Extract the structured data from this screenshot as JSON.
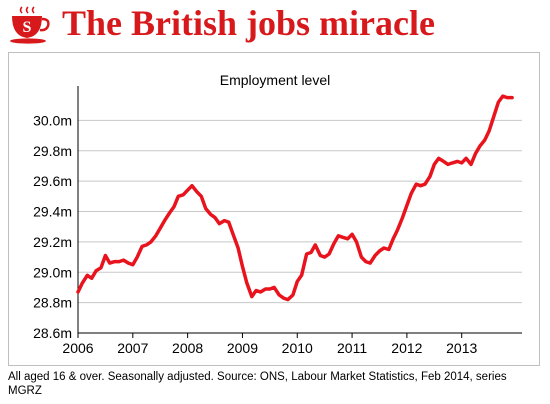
{
  "header": {
    "logo_icon": "coffee-cup-s-icon",
    "title": "The British jobs miracle",
    "accent_color": "#d7191c"
  },
  "footer": {
    "source": "All aged 16 & over. Seasonally adjusted. Source: ONS, Labour Market Statistics, Feb 2014, series MGRZ"
  },
  "chart_data": {
    "type": "line",
    "title": "Employment level",
    "xlabel": "",
    "ylabel": "",
    "xlim": [
      2006.0,
      2014.1
    ],
    "ylim": [
      28.6,
      30.2
    ],
    "grid": true,
    "legend": "none",
    "x_ticks": [
      {
        "v": 2006.0,
        "label": "2006"
      },
      {
        "v": 2007.0,
        "label": "2007"
      },
      {
        "v": 2008.0,
        "label": "2008"
      },
      {
        "v": 2009.0,
        "label": "2009"
      },
      {
        "v": 2010.0,
        "label": "2010"
      },
      {
        "v": 2011.0,
        "label": "2011"
      },
      {
        "v": 2012.0,
        "label": "2012"
      },
      {
        "v": 2013.0,
        "label": "2013"
      }
    ],
    "y_ticks": [
      {
        "v": 28.6,
        "label": "28.6m"
      },
      {
        "v": 28.8,
        "label": "28.8m"
      },
      {
        "v": 29.0,
        "label": "29.0m"
      },
      {
        "v": 29.2,
        "label": "29.2m"
      },
      {
        "v": 29.4,
        "label": "29.4m"
      },
      {
        "v": 29.6,
        "label": "29.6m"
      },
      {
        "v": 29.8,
        "label": "29.8m"
      },
      {
        "v": 30.0,
        "label": "30.0m"
      }
    ],
    "series": [
      {
        "color": "#e8131d",
        "x": [
          2006.0,
          2006.08,
          2006.17,
          2006.25,
          2006.33,
          2006.42,
          2006.5,
          2006.58,
          2006.67,
          2006.75,
          2006.83,
          2006.92,
          2007.0,
          2007.08,
          2007.17,
          2007.25,
          2007.33,
          2007.42,
          2007.5,
          2007.58,
          2007.67,
          2007.75,
          2007.83,
          2007.92,
          2008.0,
          2008.08,
          2008.17,
          2008.25,
          2008.33,
          2008.42,
          2008.5,
          2008.58,
          2008.67,
          2008.75,
          2008.83,
          2008.92,
          2009.0,
          2009.08,
          2009.17,
          2009.25,
          2009.33,
          2009.42,
          2009.5,
          2009.58,
          2009.67,
          2009.75,
          2009.83,
          2009.92,
          2010.0,
          2010.08,
          2010.17,
          2010.25,
          2010.33,
          2010.42,
          2010.5,
          2010.58,
          2010.67,
          2010.75,
          2010.83,
          2010.92,
          2011.0,
          2011.08,
          2011.17,
          2011.25,
          2011.33,
          2011.42,
          2011.5,
          2011.58,
          2011.67,
          2011.75,
          2011.83,
          2011.92,
          2012.0,
          2012.08,
          2012.17,
          2012.25,
          2012.33,
          2012.42,
          2012.5,
          2012.58,
          2012.67,
          2012.75,
          2012.83,
          2012.92,
          2013.0,
          2013.08,
          2013.17,
          2013.25,
          2013.33,
          2013.42,
          2013.5,
          2013.58,
          2013.67,
          2013.75,
          2013.83,
          2013.92
        ],
        "values": [
          28.87,
          28.93,
          28.98,
          28.96,
          29.01,
          29.03,
          29.11,
          29.06,
          29.07,
          29.07,
          29.08,
          29.06,
          29.05,
          29.1,
          29.17,
          29.18,
          29.2,
          29.24,
          29.29,
          29.34,
          29.39,
          29.43,
          29.5,
          29.51,
          29.54,
          29.57,
          29.53,
          29.5,
          29.42,
          29.38,
          29.36,
          29.32,
          29.34,
          29.33,
          29.25,
          29.16,
          29.04,
          28.93,
          28.84,
          28.88,
          28.87,
          28.89,
          28.89,
          28.9,
          28.85,
          28.83,
          28.82,
          28.85,
          28.94,
          28.98,
          29.12,
          29.13,
          29.18,
          29.11,
          29.1,
          29.12,
          29.19,
          29.24,
          29.23,
          29.22,
          29.25,
          29.2,
          29.1,
          29.07,
          29.06,
          29.11,
          29.14,
          29.16,
          29.15,
          29.22,
          29.28,
          29.36,
          29.44,
          29.52,
          29.58,
          29.57,
          29.58,
          29.63,
          29.71,
          29.75,
          29.73,
          29.71,
          29.72,
          29.73,
          29.72,
          29.75,
          29.71,
          29.78,
          29.83,
          29.87,
          29.93,
          30.02,
          30.12,
          30.16,
          30.15,
          30.15
        ]
      }
    ]
  }
}
